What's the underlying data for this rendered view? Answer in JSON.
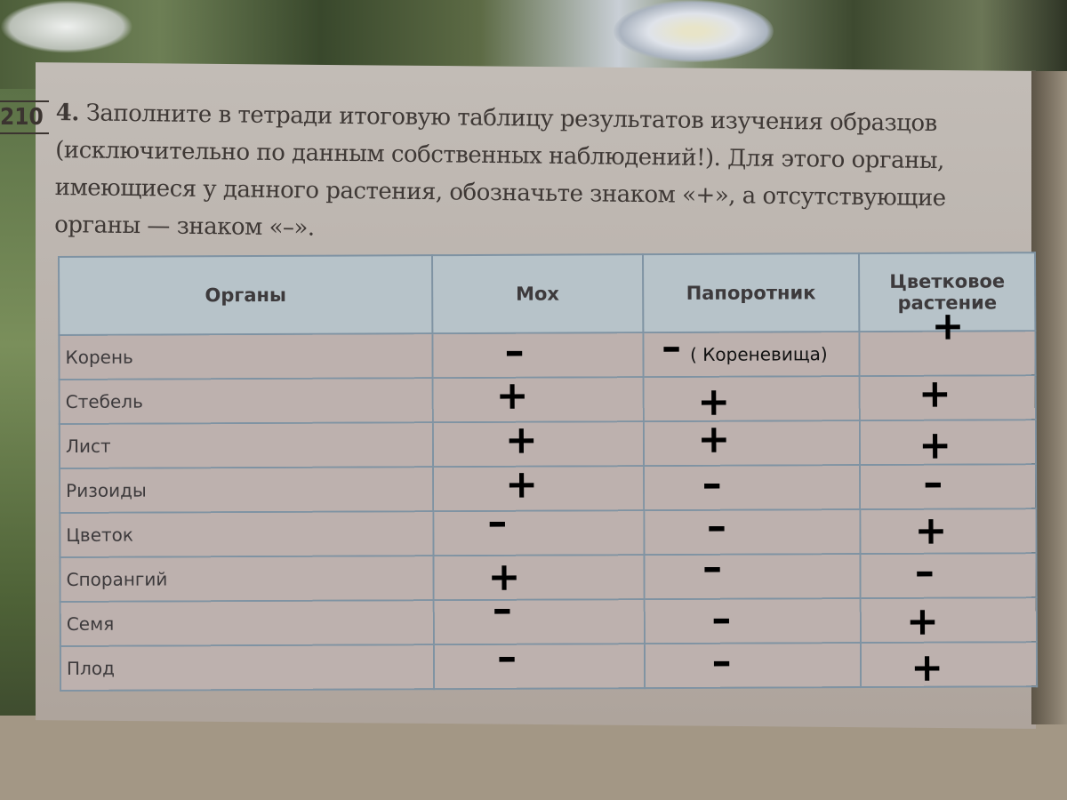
{
  "page_number": "210",
  "task": {
    "number": "4.",
    "text": "Заполните в тетради итоговую таблицу результатов изучения образцов (исключительно по данным собственных наблюдений!). Для этого органы, имеющиеся у данного растения, обозначьте знаком «+», а отсутствующие органы — знаком «–»."
  },
  "table": {
    "headers": [
      "Органы",
      "Мох",
      "Папоротник",
      "Цветковое растение"
    ],
    "rows": [
      {
        "organ": "Корень",
        "marks": [
          "–",
          "–",
          "+"
        ],
        "note": "( Кореневища)"
      },
      {
        "organ": "Стебель",
        "marks": [
          "+",
          "+",
          "+"
        ]
      },
      {
        "organ": "Лист",
        "marks": [
          "+",
          "+",
          "+"
        ]
      },
      {
        "organ": "Ризоиды",
        "marks": [
          "+",
          "–",
          "–"
        ]
      },
      {
        "organ": "Цветок",
        "marks": [
          "–",
          "–",
          "+"
        ]
      },
      {
        "organ": "Спорангий",
        "marks": [
          "+",
          "–",
          "–"
        ]
      },
      {
        "organ": "Семя",
        "marks": [
          "–",
          "–",
          "+"
        ]
      },
      {
        "organ": "Плод",
        "marks": [
          "–",
          "–",
          "+"
        ]
      }
    ]
  },
  "colors": {
    "header_bg": "#b7c3c9",
    "row_bg": "#bdb1ae",
    "grid": "#7f93a3",
    "handwritten_marks": "#000000"
  }
}
